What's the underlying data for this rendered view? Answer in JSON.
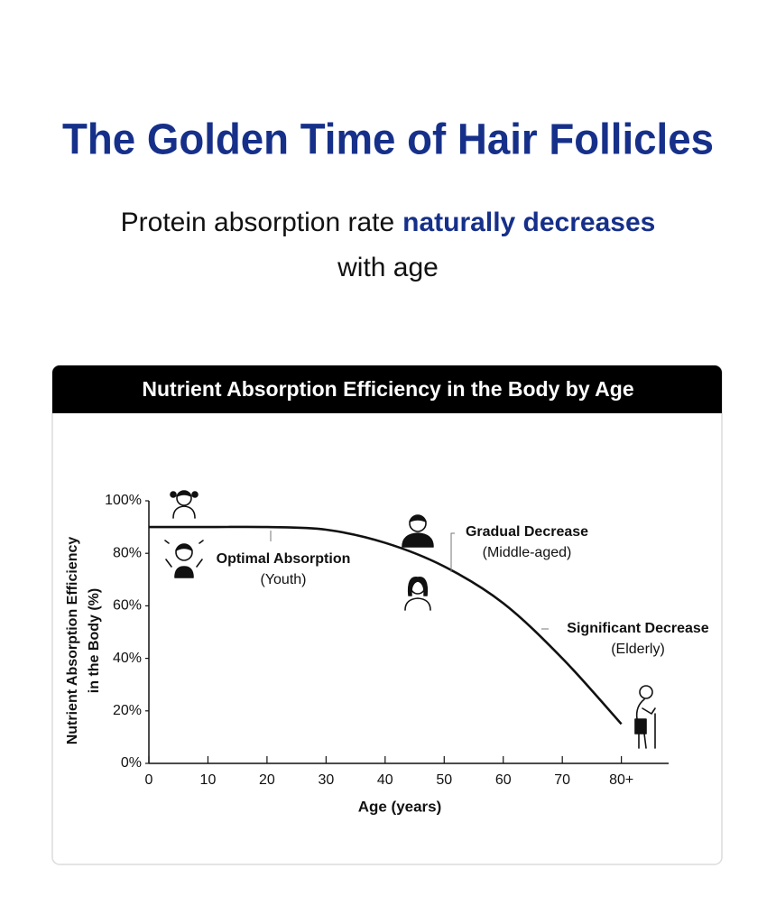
{
  "header": {
    "title": "The Golden Time of Hair Follicles",
    "subtitle": [
      "Protein absorption rate",
      "naturally decreases",
      "with age"
    ]
  },
  "chart_data": {
    "type": "line",
    "title": "Nutrient Absorption Efficiency in the Body by Age",
    "x": [
      0,
      10,
      20,
      30,
      40,
      50,
      60,
      70,
      80
    ],
    "series": [
      {
        "name": "Nutrient Absorption Efficiency",
        "color": "#111111",
        "values": [
          90,
          90,
          90,
          89,
          84,
          75,
          61,
          40,
          15
        ]
      }
    ],
    "xlim": [
      0,
      88
    ],
    "ylim": [
      0,
      100
    ],
    "xticks": [
      0,
      10,
      20,
      30,
      40,
      50,
      60,
      70,
      {
        "value": 80,
        "label": "80+"
      }
    ],
    "yticks": [
      {
        "value": 0,
        "label": "0%"
      },
      {
        "value": 20,
        "label": "20%"
      },
      {
        "value": 40,
        "label": "40%"
      },
      {
        "value": 60,
        "label": "60%"
      },
      {
        "value": 80,
        "label": "80%"
      },
      {
        "value": 100,
        "label": "100%"
      }
    ],
    "xlabel": "Age (years)",
    "ylabel": [
      "Nutrient Absorption Efficiency",
      "in the Body (%)"
    ],
    "annotations": [
      [
        "Optimal Absorption",
        "(Youth)"
      ],
      [
        "Gradual Decrease",
        "(Middle-aged)"
      ],
      [
        "Significant Decrease",
        "(Elderly)"
      ]
    ]
  }
}
